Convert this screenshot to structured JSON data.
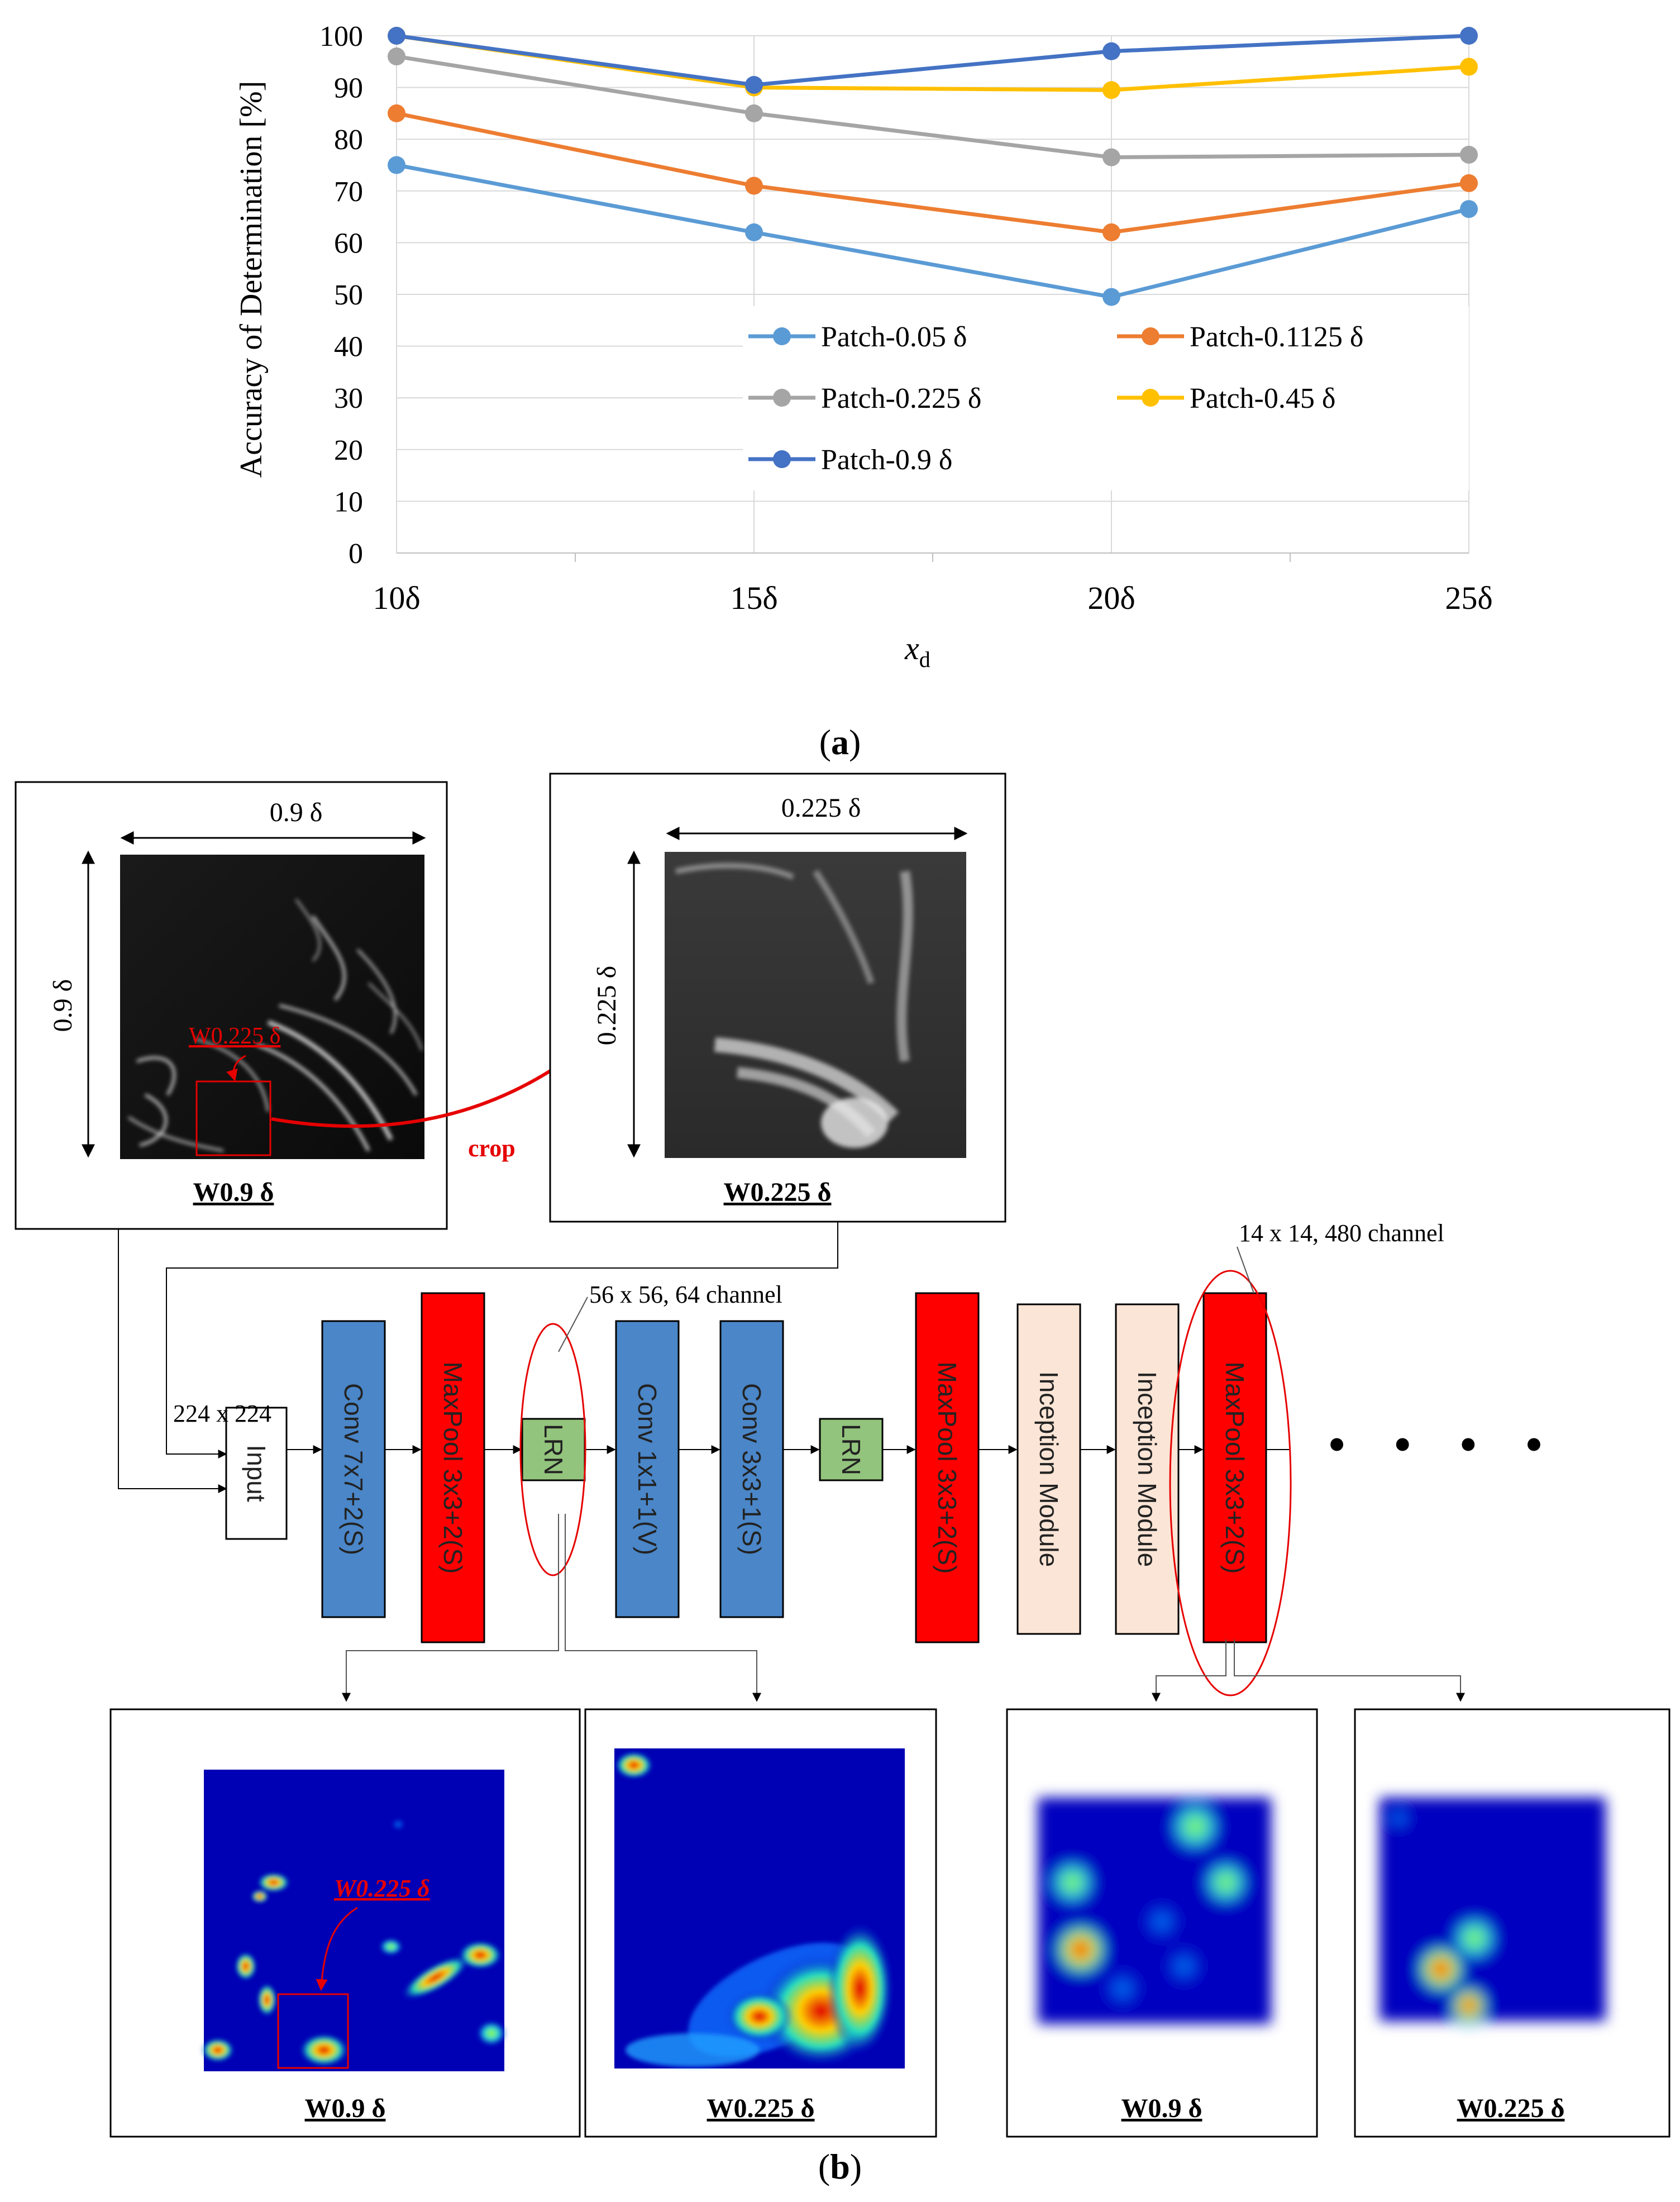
{
  "panel_a": {
    "label": "(a)",
    "label_open": "(",
    "label_letter": "a",
    "label_close": ")"
  },
  "panel_b": {
    "label_open": "(",
    "label_letter": "b",
    "label_close": ")",
    "source_image": {
      "caption": "W0.9 δ",
      "width_dim": "0.9 δ",
      "height_dim": "0.9 δ",
      "crop_label": "W0.225 δ"
    },
    "crop_arrow_label": "crop",
    "cropped_image": {
      "caption": "W0.225 δ",
      "width_dim": "0.225 δ",
      "height_dim": "0.225 δ"
    },
    "network": {
      "input_size": "224 x 224",
      "layers": [
        {
          "label": "Input",
          "kind": "input"
        },
        {
          "label": "Conv 7x7+2(S)",
          "kind": "conv"
        },
        {
          "label": "MaxPool 3x3+2(S)",
          "kind": "pool"
        },
        {
          "label": "LRN",
          "kind": "lrn"
        },
        {
          "label": "Conv 1x1+1(V)",
          "kind": "conv"
        },
        {
          "label": "Conv 3x3+1(S)",
          "kind": "conv"
        },
        {
          "label": "LRN",
          "kind": "lrn"
        },
        {
          "label": "MaxPool 3x3+2(S)",
          "kind": "pool"
        },
        {
          "label": "Inception Module",
          "kind": "inception"
        },
        {
          "label": "Inception Module",
          "kind": "inception"
        },
        {
          "label": "MaxPool 3x3+2(S)",
          "kind": "pool"
        }
      ],
      "lrn_annotation": "56 x 56, 64 channel",
      "pool_annotation": "14 x 14, 480 channel",
      "continuation": "• • • •"
    },
    "feature_maps": [
      {
        "caption": "W0.9 δ",
        "crop_label": "W0.225 δ"
      },
      {
        "caption": "W0.225 δ"
      },
      {
        "caption": "W0.9 δ"
      },
      {
        "caption": "W0.225 δ"
      }
    ]
  },
  "colors": {
    "conv": "#4a86c8",
    "pool": "#ff0000",
    "lrn": "#93c47d",
    "inception": "#fbe5d6",
    "input": "#ffffff",
    "annot_red": "#e60000"
  },
  "chart_data": {
    "type": "line",
    "ylabel": "Accuracy of Determination [%]",
    "xlabel": "x",
    "xlabel_sub": "d",
    "categories": [
      "10δ",
      "15δ",
      "20δ",
      "25δ"
    ],
    "ylim": [
      0,
      100
    ],
    "yticks": [
      0,
      10,
      20,
      30,
      40,
      50,
      60,
      70,
      80,
      90,
      100
    ],
    "grid": true,
    "legend_position": "bottom-right inside",
    "series": [
      {
        "name": "Patch-0.05 δ",
        "color": "#5b9bd5",
        "values": [
          75,
          62,
          49.5,
          66.5
        ]
      },
      {
        "name": "Patch-0.1125 δ",
        "color": "#ed7d31",
        "values": [
          85,
          71,
          62,
          71.5
        ]
      },
      {
        "name": "Patch-0.225 δ",
        "color": "#a5a5a5",
        "values": [
          96,
          85,
          76.5,
          77
        ]
      },
      {
        "name": "Patch-0.45 δ",
        "color": "#ffc000",
        "values": [
          100,
          90,
          89.5,
          94
        ]
      },
      {
        "name": "Patch-0.9 δ",
        "color": "#4472c4",
        "values": [
          100,
          90.5,
          97,
          100
        ]
      }
    ]
  }
}
